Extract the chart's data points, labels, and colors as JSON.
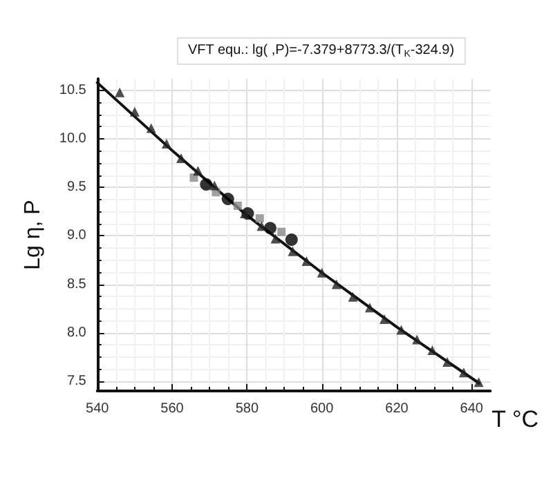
{
  "chart_data": {
    "type": "scatter",
    "title": "VFT equ.: lg( ,P)=-7.379+8773.3/(T$_{K}$-324.9)",
    "xlabel": "T °C",
    "ylabel": "Lg η, P",
    "xlim": [
      540,
      645
    ],
    "ylim": [
      7.4,
      10.62
    ],
    "xticks": [
      540,
      560,
      580,
      600,
      620,
      640
    ],
    "yticks": [
      7.5,
      {
        "value": 8,
        "label": "8.0"
      },
      8.5,
      {
        "value": 9,
        "label": "9.0"
      },
      9.5,
      {
        "value": 10,
        "label": "10.0"
      },
      10.5
    ],
    "grid": true,
    "series": [
      {
        "type": "line",
        "color": "#111111",
        "marker": "none",
        "line_style": "solid",
        "x": [
          540,
          560,
          580,
          600,
          620,
          642
        ],
        "values": [
          10.58,
          9.88,
          9.21,
          8.62,
          8.06,
          7.48
        ]
      },
      {
        "color": "#222222",
        "marker": "triangle",
        "x": [
          546.0,
          550.0,
          554.4,
          558.5,
          562.4,
          566.9,
          571.3,
          579.4,
          583.9,
          587.6,
          592.2,
          595.9,
          600.0,
          603.9,
          608.3,
          612.8,
          616.7,
          621.2,
          625.4,
          629.5,
          633.5,
          637.9,
          641.9
        ],
        "values": [
          10.48,
          10.28,
          10.11,
          9.95,
          9.8,
          9.67,
          9.52,
          9.23,
          9.1,
          8.97,
          8.84,
          8.74,
          8.62,
          8.5,
          8.37,
          8.26,
          8.14,
          8.03,
          7.93,
          7.82,
          7.7,
          7.59,
          7.49
        ]
      },
      {
        "color": "#888888",
        "marker": "square",
        "x": [
          565.8,
          571.7,
          577.5,
          583.4,
          589.2
        ],
        "values": [
          9.6,
          9.45,
          9.31,
          9.18,
          9.04
        ]
      },
      {
        "color": "#000000",
        "marker": "circle",
        "x": [
          569.1,
          574.9,
          580.2,
          586.2,
          591.9
        ],
        "values": [
          9.53,
          9.38,
          9.23,
          9.08,
          8.96
        ]
      }
    ]
  }
}
